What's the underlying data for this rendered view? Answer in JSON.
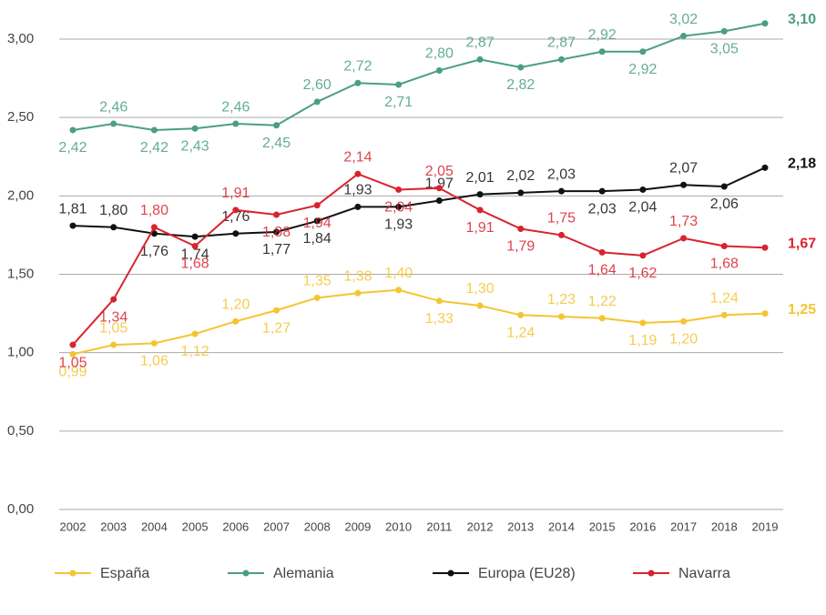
{
  "chart_data": {
    "type": "line",
    "categories": [
      "2002",
      "2003",
      "2004",
      "2005",
      "2006",
      "2007",
      "2008",
      "2009",
      "2010",
      "2011",
      "2012",
      "2013",
      "2014",
      "2015",
      "2016",
      "2017",
      "2018",
      "2019"
    ],
    "series": [
      {
        "name": "España",
        "color": "#f5c431",
        "values": [
          0.99,
          1.05,
          1.06,
          1.12,
          1.2,
          1.27,
          1.35,
          1.38,
          1.4,
          1.33,
          1.3,
          1.24,
          1.23,
          1.22,
          1.19,
          1.2,
          1.24,
          1.25
        ],
        "value_labels": [
          "0,99",
          "1,05",
          "1,06",
          "1,12",
          "1,20",
          "1,27",
          "1,35",
          "1,38",
          "1,40",
          "1,33",
          "1,30",
          "1,24",
          "1,23",
          "1,22",
          "1,19",
          "1,20",
          "1,24",
          "1,25"
        ]
      },
      {
        "name": "Alemania",
        "color": "#4a9e86",
        "values": [
          2.42,
          2.46,
          2.42,
          2.43,
          2.46,
          2.45,
          2.6,
          2.72,
          2.71,
          2.8,
          2.87,
          2.82,
          2.87,
          2.92,
          2.92,
          3.02,
          3.05,
          3.1
        ],
        "value_labels": [
          "2,42",
          "2,46",
          "2,42",
          "2,43",
          "2,46",
          "2,45",
          "2,60",
          "2,72",
          "2,71",
          "2,80",
          "2,87",
          "2,82",
          "2,87",
          "2,92",
          "2,92",
          "3,02",
          "3,05",
          "3,10"
        ]
      },
      {
        "name": "Europa (EU28)",
        "color": "#111111",
        "values": [
          1.81,
          1.8,
          1.76,
          1.74,
          1.76,
          1.77,
          1.84,
          1.93,
          1.93,
          1.97,
          2.01,
          2.02,
          2.03,
          2.03,
          2.04,
          2.07,
          2.06,
          2.18
        ],
        "value_labels": [
          "1,81",
          "1,80",
          "1,76",
          "1,74",
          "1,76",
          "1,77",
          "1,84",
          "1,93",
          "1,93",
          "1,97",
          "2,01",
          "2,02",
          "2,03",
          "2,03",
          "2,04",
          "2,07",
          "2,06",
          "2,18"
        ]
      },
      {
        "name": "Navarra",
        "color": "#d9232e",
        "values": [
          1.05,
          1.34,
          1.8,
          1.68,
          1.91,
          1.88,
          1.94,
          2.14,
          2.04,
          2.05,
          1.91,
          1.79,
          1.75,
          1.64,
          1.62,
          1.73,
          1.68,
          1.67
        ],
        "value_labels": [
          "1,05",
          "1,34",
          "1,80",
          "1,68",
          "1,91",
          "1,88",
          "1,94",
          "2,14",
          "2,04",
          "2,05",
          "1,91",
          "1,79",
          "1,75",
          "1,64",
          "1,62",
          "1,73",
          "1,68",
          "1,67"
        ]
      }
    ],
    "ylim": [
      0,
      3
    ],
    "yticks": [
      {
        "value": 0,
        "label": "0,00"
      },
      {
        "value": 0.5,
        "label": "0,50"
      },
      {
        "value": 1,
        "label": "1,00"
      },
      {
        "value": 1.5,
        "label": "1,50"
      },
      {
        "value": 2,
        "label": "2,00"
      },
      {
        "value": 2.5,
        "label": "2,50"
      },
      {
        "value": 3,
        "label": "3,00"
      }
    ],
    "grid": true,
    "legend": "bottom"
  }
}
